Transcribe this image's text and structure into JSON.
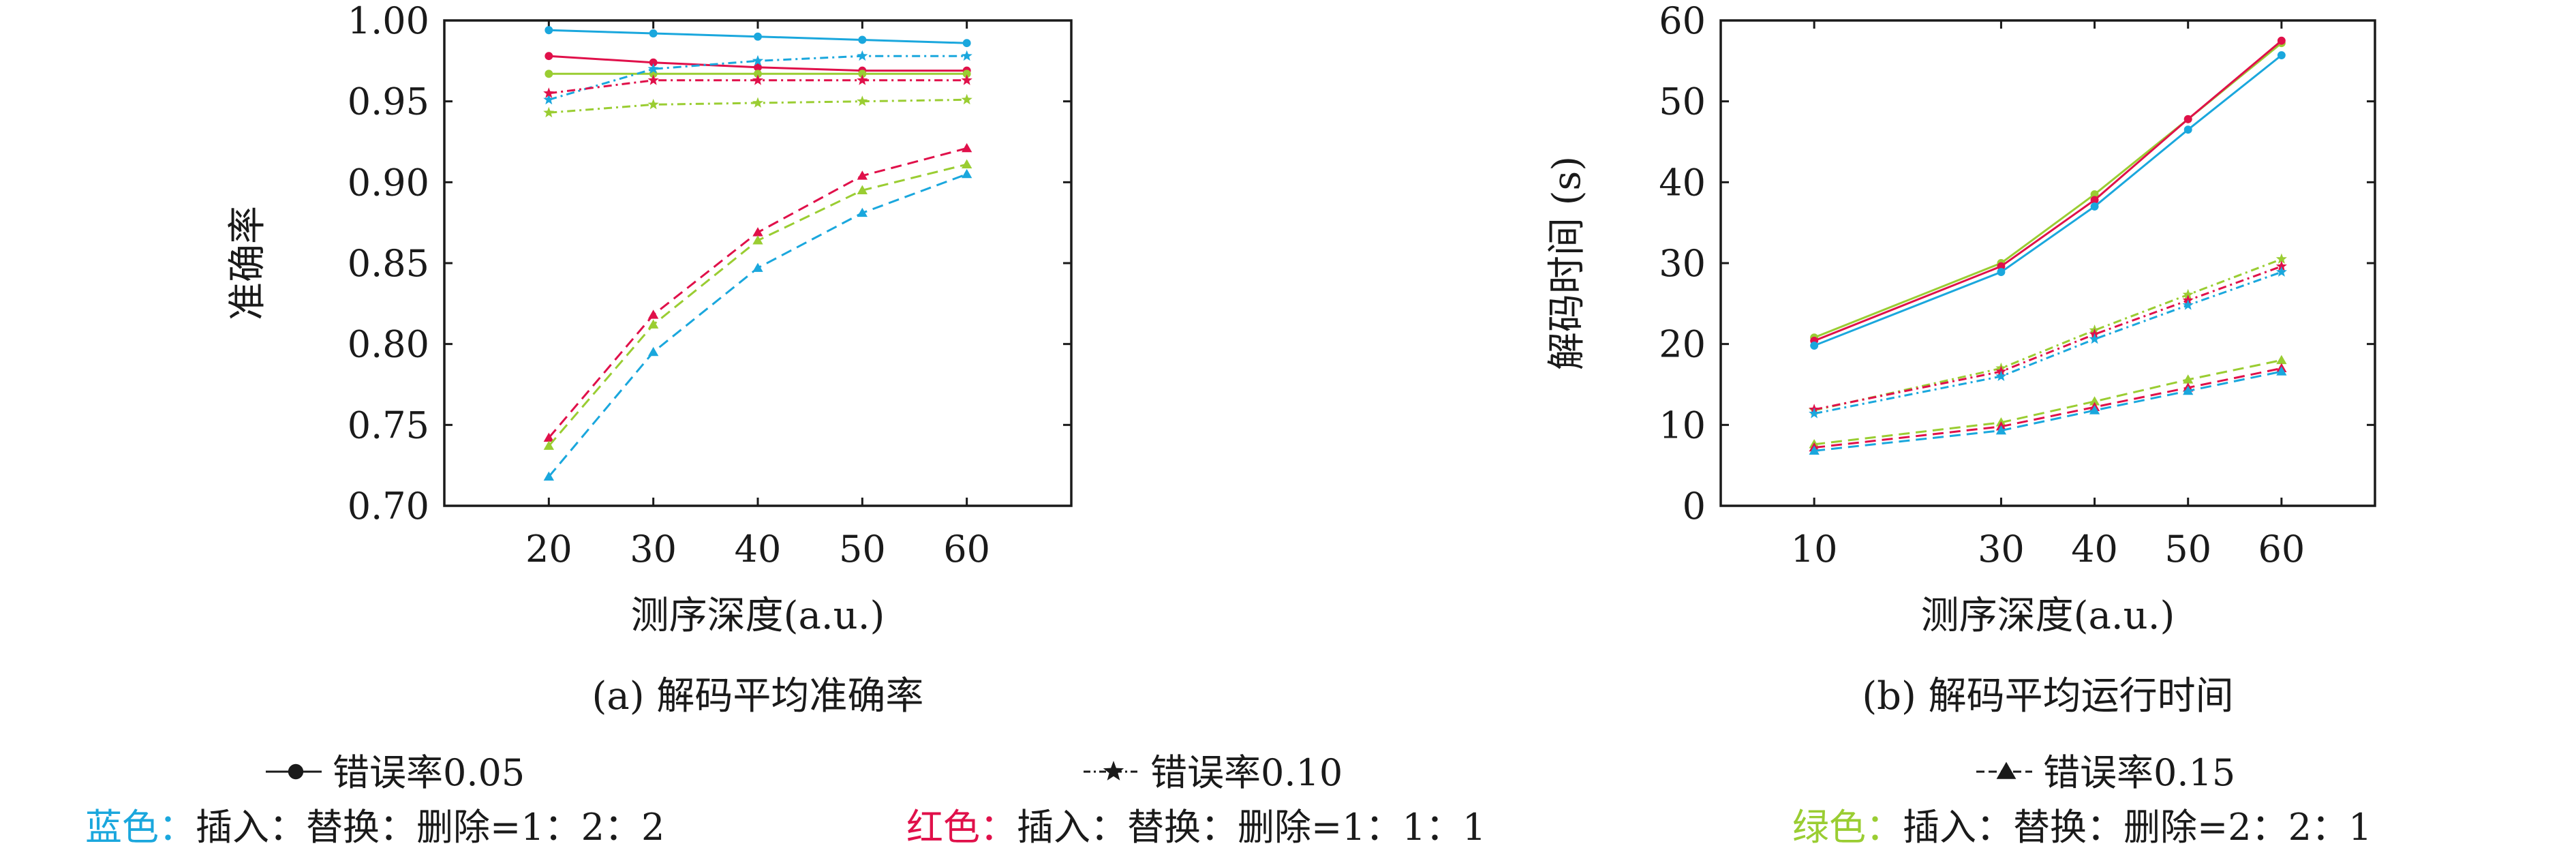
{
  "colors": {
    "blue": "#1aa7dd",
    "red": "#e0104a",
    "green": "#9acd32",
    "axis": "#1a1a1a",
    "legend_marker": "#1a1a1a"
  },
  "chart_data": [
    {
      "type": "line",
      "caption": "(a) 解码平均准确率",
      "xlabel": "测序深度(a.u.)",
      "ylabel": "准确率",
      "x": [
        20,
        30,
        40,
        50,
        60
      ],
      "x_ticks": [
        "20",
        "30",
        "40",
        "50",
        "60"
      ],
      "xlim": [
        10,
        70
      ],
      "ylim": [
        0.7,
        1.0
      ],
      "y_ticks": [
        "0.70",
        "0.75",
        "0.80",
        "0.85",
        "0.90",
        "0.95",
        "1.00"
      ],
      "grid": false,
      "series": [
        {
          "color": "blue",
          "marker": "circle",
          "line": "solid",
          "values": [
            0.994,
            0.992,
            0.99,
            0.988,
            0.986
          ]
        },
        {
          "color": "red",
          "marker": "circle",
          "line": "solid",
          "values": [
            0.978,
            0.974,
            0.971,
            0.969,
            0.969
          ]
        },
        {
          "color": "green",
          "marker": "circle",
          "line": "solid",
          "values": [
            0.967,
            0.967,
            0.967,
            0.967,
            0.967
          ]
        },
        {
          "color": "blue",
          "marker": "star",
          "line": "dashdot",
          "values": [
            0.951,
            0.97,
            0.975,
            0.978,
            0.978
          ]
        },
        {
          "color": "red",
          "marker": "star",
          "line": "dashdot",
          "values": [
            0.955,
            0.963,
            0.963,
            0.963,
            0.963
          ]
        },
        {
          "color": "green",
          "marker": "star",
          "line": "dashdot",
          "values": [
            0.943,
            0.948,
            0.949,
            0.95,
            0.951
          ]
        },
        {
          "color": "red",
          "marker": "triangle",
          "line": "dashed",
          "values": [
            0.742,
            0.818,
            0.869,
            0.904,
            0.921
          ]
        },
        {
          "color": "green",
          "marker": "triangle",
          "line": "dashed",
          "values": [
            0.737,
            0.812,
            0.864,
            0.895,
            0.911
          ]
        },
        {
          "color": "blue",
          "marker": "triangle",
          "line": "dashed",
          "values": [
            0.718,
            0.795,
            0.847,
            0.881,
            0.905
          ]
        }
      ]
    },
    {
      "type": "line",
      "caption": "(b) 解码平均运行时间",
      "xlabel": "测序深度(a.u.)",
      "ylabel": "解码时间 (s)",
      "x": [
        10,
        30,
        40,
        50,
        60
      ],
      "x_ticks": [
        "10",
        "30",
        "40",
        "50",
        "60"
      ],
      "xlim": [
        0,
        70
      ],
      "ylim": [
        0,
        60
      ],
      "y_ticks": [
        "0",
        "10",
        "20",
        "30",
        "40",
        "50",
        "60"
      ],
      "grid": false,
      "series": [
        {
          "color": "green",
          "marker": "circle",
          "line": "solid",
          "values": [
            20.8,
            30.0,
            38.5,
            47.8,
            57.2
          ]
        },
        {
          "color": "red",
          "marker": "circle",
          "line": "solid",
          "values": [
            20.4,
            29.6,
            37.8,
            47.8,
            57.5
          ]
        },
        {
          "color": "blue",
          "marker": "circle",
          "line": "solid",
          "values": [
            19.8,
            28.9,
            37.0,
            46.5,
            55.7
          ]
        },
        {
          "color": "green",
          "marker": "star",
          "line": "dashdot",
          "values": [
            11.8,
            17.0,
            21.7,
            26.1,
            30.5
          ]
        },
        {
          "color": "red",
          "marker": "star",
          "line": "dashdot",
          "values": [
            11.9,
            16.6,
            21.2,
            25.4,
            29.6
          ]
        },
        {
          "color": "blue",
          "marker": "star",
          "line": "dashdot",
          "values": [
            11.4,
            16.0,
            20.6,
            24.8,
            28.9
          ]
        },
        {
          "color": "green",
          "marker": "triangle",
          "line": "dashed",
          "values": [
            7.6,
            10.3,
            12.9,
            15.6,
            18.0
          ]
        },
        {
          "color": "red",
          "marker": "triangle",
          "line": "dashed",
          "values": [
            7.2,
            9.8,
            12.2,
            14.6,
            17.0
          ]
        },
        {
          "color": "blue",
          "marker": "triangle",
          "line": "dashed",
          "values": [
            6.8,
            9.3,
            11.8,
            14.2,
            16.6
          ]
        }
      ]
    }
  ],
  "legend": {
    "markers": [
      {
        "marker": "circle",
        "line": "solid",
        "label": "错误率0.05"
      },
      {
        "marker": "star",
        "line": "dashdot",
        "label": "错误率0.10"
      },
      {
        "marker": "triangle",
        "line": "dashed",
        "label": "错误率0.15"
      }
    ],
    "colors": [
      {
        "color": "blue",
        "name": "蓝色：",
        "text": "插入：替换：删除=1：2：2"
      },
      {
        "color": "red",
        "name": "红色：",
        "text": "插入：替换：删除=1：1：1"
      },
      {
        "color": "green",
        "name": "绿色：",
        "text": "插入：替换：删除=2：2：1"
      }
    ]
  }
}
